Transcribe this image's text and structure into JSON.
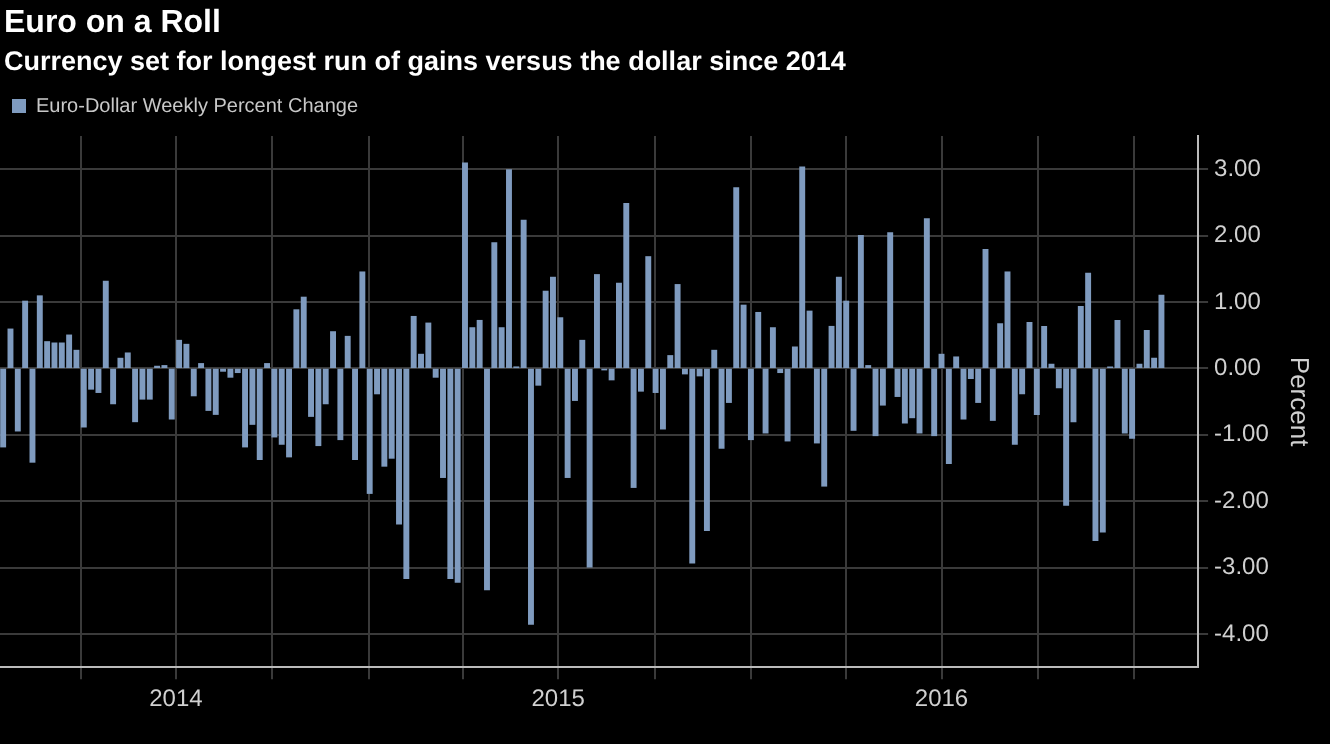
{
  "chart_data": {
    "type": "bar",
    "title": "Euro on a Roll",
    "subtitle": "Currency set for longest run of gains versus the dollar since 2014",
    "ylabel": "Percent",
    "x": [
      "2014-01-17",
      "2014-01-24",
      "2014-01-31",
      "2014-02-07",
      "2014-02-14",
      "2014-02-21",
      "2014-02-28",
      "2014-03-07",
      "2014-03-14",
      "2014-03-21",
      "2014-03-28",
      "2014-04-04",
      "2014-04-11",
      "2014-04-18",
      "2014-04-25",
      "2014-05-02",
      "2014-05-09",
      "2014-05-16",
      "2014-05-23",
      "2014-05-30",
      "2014-06-06",
      "2014-06-13",
      "2014-06-20",
      "2014-06-27",
      "2014-07-04",
      "2014-07-11",
      "2014-07-18",
      "2014-07-25",
      "2014-08-01",
      "2014-08-08",
      "2014-08-15",
      "2014-08-22",
      "2014-08-29",
      "2014-09-05",
      "2014-09-12",
      "2014-09-19",
      "2014-09-26",
      "2014-10-03",
      "2014-10-10",
      "2014-10-17",
      "2014-10-24",
      "2014-10-31",
      "2014-11-07",
      "2014-11-14",
      "2014-11-21",
      "2014-11-28",
      "2014-12-05",
      "2014-12-12",
      "2014-12-19",
      "2014-12-26",
      "2015-01-02",
      "2015-01-09",
      "2015-01-16",
      "2015-01-23",
      "2015-01-30",
      "2015-02-06",
      "2015-02-13",
      "2015-02-20",
      "2015-02-27",
      "2015-03-06",
      "2015-03-13",
      "2015-03-20",
      "2015-03-27",
      "2015-04-03",
      "2015-04-10",
      "2015-04-17",
      "2015-04-24",
      "2015-05-01",
      "2015-05-08",
      "2015-05-15",
      "2015-05-22",
      "2015-05-29",
      "2015-06-05",
      "2015-06-12",
      "2015-06-19",
      "2015-06-26",
      "2015-07-03",
      "2015-07-10",
      "2015-07-17",
      "2015-07-24",
      "2015-07-31",
      "2015-08-07",
      "2015-08-14",
      "2015-08-21",
      "2015-08-28",
      "2015-09-04",
      "2015-09-11",
      "2015-09-18",
      "2015-09-25",
      "2015-10-02",
      "2015-10-09",
      "2015-10-16",
      "2015-10-23",
      "2015-10-30",
      "2015-11-06",
      "2015-11-13",
      "2015-11-20",
      "2015-11-27",
      "2015-12-04",
      "2015-12-11",
      "2015-12-18",
      "2015-12-25",
      "2016-01-01",
      "2016-01-08",
      "2016-01-15",
      "2016-01-22",
      "2016-01-29",
      "2016-02-05",
      "2016-02-12",
      "2016-02-19",
      "2016-02-26",
      "2016-03-04",
      "2016-03-11",
      "2016-03-18",
      "2016-03-25",
      "2016-04-01",
      "2016-04-08",
      "2016-04-15",
      "2016-04-22",
      "2016-04-29",
      "2016-05-06",
      "2016-05-13",
      "2016-05-20",
      "2016-05-27",
      "2016-06-03",
      "2016-06-10",
      "2016-06-17",
      "2016-06-24",
      "2016-07-01",
      "2016-07-08",
      "2016-07-15",
      "2016-07-22",
      "2016-07-29",
      "2016-08-05",
      "2016-08-12",
      "2016-08-19",
      "2016-08-26",
      "2016-09-02",
      "2016-09-09",
      "2016-09-16",
      "2016-09-23",
      "2016-09-30",
      "2016-10-07",
      "2016-10-14",
      "2016-10-21",
      "2016-10-28",
      "2016-11-04",
      "2016-11-11",
      "2016-11-18",
      "2016-11-25",
      "2016-12-02",
      "2016-12-09",
      "2016-12-16",
      "2016-12-23",
      "2016-12-30",
      "2017-01-06",
      "2017-01-13",
      "2017-01-20",
      "2017-01-27"
    ],
    "series": [
      {
        "name": "Euro-Dollar Weekly Percent Change",
        "color": "#7f9bbf",
        "values": [
          -1.18,
          0.59,
          -0.94,
          1.01,
          -1.41,
          1.09,
          0.4,
          0.38,
          0.38,
          0.5,
          0.27,
          -0.88,
          -0.31,
          -0.36,
          1.31,
          -0.53,
          0.15,
          0.23,
          -0.8,
          -0.46,
          -0.46,
          0.03,
          0.04,
          -0.76,
          0.42,
          0.36,
          -0.41,
          0.07,
          -0.63,
          -0.69,
          -0.04,
          -0.13,
          -0.06,
          -1.18,
          -0.84,
          -1.37,
          0.07,
          -1.03,
          -1.14,
          -1.33,
          0.88,
          1.07,
          -0.72,
          -1.16,
          -0.53,
          0.55,
          -1.07,
          0.48,
          -1.37,
          1.45,
          -1.88,
          -0.38,
          -1.47,
          -1.35,
          -2.34,
          -3.16,
          0.78,
          0.21,
          0.68,
          -0.13,
          -1.64,
          -3.16,
          -3.22,
          3.09,
          0.61,
          0.72,
          -3.33,
          1.89,
          0.61,
          2.99,
          0.02,
          2.23,
          -3.85,
          -0.25,
          1.16,
          1.37,
          0.76,
          -1.64,
          -0.48,
          0.42,
          -2.99,
          1.41,
          -0.02,
          -0.17,
          1.28,
          2.48,
          -1.79,
          -0.34,
          1.68,
          -0.36,
          -0.91,
          0.19,
          1.26,
          -0.08,
          -2.93,
          -0.11,
          -2.44,
          0.27,
          -1.2,
          -0.51,
          2.72,
          0.95,
          -1.07,
          0.84,
          -0.97,
          0.61,
          -0.06,
          -1.09,
          0.32,
          3.03,
          0.86,
          -1.12,
          -1.77,
          0.63,
          1.37,
          1.01,
          -0.93,
          2.0,
          0.04,
          -1.01,
          -0.55,
          2.04,
          -0.42,
          -0.82,
          -0.74,
          -0.97,
          2.25,
          -1.01,
          0.21,
          -1.43,
          0.17,
          -0.76,
          -0.15,
          -0.51,
          1.79,
          -0.78,
          0.67,
          1.45,
          -1.14,
          -0.38,
          0.69,
          -0.69,
          0.63,
          0.06,
          -0.29,
          -2.06,
          -0.8,
          0.93,
          1.43,
          -2.59,
          -2.46,
          0.02,
          0.72,
          -0.97,
          -1.05,
          0.06,
          0.57,
          0.15,
          1.1
        ]
      }
    ],
    "xlim": [
      "2014-01-14",
      "2017-03-03"
    ],
    "xticks": [
      {
        "value": "2014-04-01",
        "label": null
      },
      {
        "value": "2014-07-01",
        "label": "2014"
      },
      {
        "value": "2014-10-01",
        "label": null
      },
      {
        "value": "2015-01-01",
        "label": null
      },
      {
        "value": "2015-04-01",
        "label": null
      },
      {
        "value": "2015-07-01",
        "label": "2015"
      },
      {
        "value": "2015-10-01",
        "label": null
      },
      {
        "value": "2016-01-01",
        "label": null
      },
      {
        "value": "2016-04-01",
        "label": null
      },
      {
        "value": "2016-07-01",
        "label": "2016"
      },
      {
        "value": "2016-10-01",
        "label": null
      },
      {
        "value": "2017-01-01",
        "label": null
      }
    ],
    "ylim": [
      -4.5,
      3.5
    ],
    "yticks": [
      {
        "value": -4,
        "label": "-4.00"
      },
      {
        "value": -3,
        "label": "-3.00"
      },
      {
        "value": -2,
        "label": "-2.00"
      },
      {
        "value": -1,
        "label": "-1.00"
      },
      {
        "value": 0,
        "label": "0.00"
      },
      {
        "value": 1,
        "label": "1.00"
      },
      {
        "value": 2,
        "label": "2.00"
      },
      {
        "value": 3,
        "label": "3.00"
      }
    ],
    "grid": true,
    "legend": "top left"
  }
}
